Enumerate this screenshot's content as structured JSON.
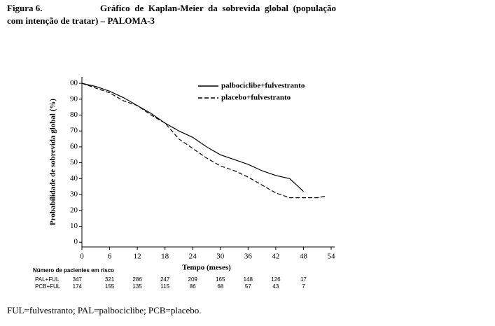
{
  "figure_label": "Figura 6.",
  "footnote": "FUL=fulvestranto; PAL=palbociclibe; PCB=placebo.",
  "chart_data": {
    "type": "line",
    "title": "Gráfico de Kaplan-Meier da sobrevida global (população com intenção de tratar) – PALOMA-3",
    "x_label": "Tempo (meses)",
    "y_label": "Probabilidade de sobrevida global (%)",
    "x": [
      0,
      3,
      6,
      9,
      12,
      15,
      18,
      21,
      24,
      27,
      30,
      33,
      36,
      39,
      42,
      45,
      48,
      51,
      53
    ],
    "series": [
      {
        "name": "palbociclibe+fulvestranto",
        "color": "#000000",
        "dashed": false,
        "values": [
          100,
          98,
          95,
          91,
          86,
          81,
          75,
          70,
          66,
          60,
          55,
          52,
          49,
          45,
          42,
          40,
          32,
          null,
          null
        ]
      },
      {
        "name": "placebo+fulvestranto",
        "color": "#000000",
        "dashed": true,
        "values": [
          100,
          97,
          94,
          89,
          86,
          80,
          75,
          65,
          59,
          53,
          48,
          45,
          41,
          36,
          31,
          28,
          28,
          28,
          29
        ]
      }
    ],
    "xlim": [
      0,
      54
    ],
    "xticks": [
      0,
      6,
      12,
      18,
      24,
      30,
      36,
      42,
      48,
      54
    ],
    "ylim": [
      -3,
      104
    ],
    "yticks": [
      0,
      10,
      20,
      30,
      40,
      50,
      60,
      70,
      80,
      90,
      {
        "value": 100,
        "label": "00"
      }
    ],
    "grid": false,
    "legend": "top-right",
    "risk_table": {
      "title": "Número de pacientes em risco",
      "rows": [
        {
          "label": "PAL+FUL",
          "values": [
            347,
            321,
            286,
            247,
            209,
            165,
            148,
            126,
            17
          ]
        },
        {
          "label": "PCB+FUL",
          "values": [
            174,
            155,
            135,
            115,
            86,
            68,
            57,
            43,
            7
          ]
        }
      ]
    }
  }
}
